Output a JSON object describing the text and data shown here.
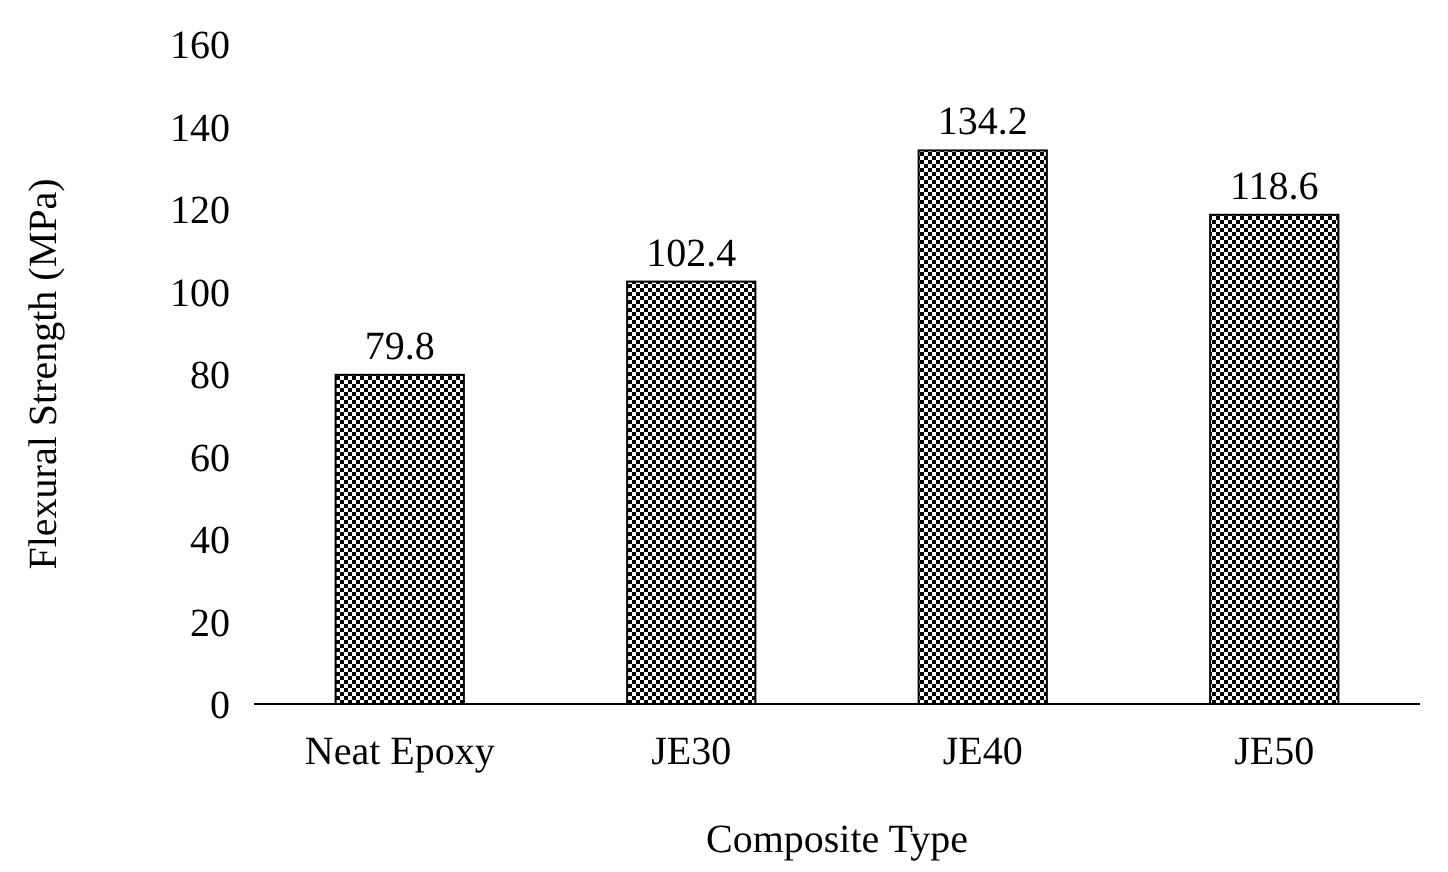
{
  "chart_data": {
    "type": "bar",
    "xlabel": "Composite Type",
    "ylabel": "Flexural Strength (MPa)",
    "categories": [
      "Neat Epoxy",
      "JE30",
      "JE40",
      "JE50"
    ],
    "values": [
      79.8,
      102.4,
      134.2,
      118.6
    ],
    "color": "#000000",
    "ylim": [
      0,
      160
    ],
    "yticks": [
      0,
      20,
      40,
      60,
      80,
      100,
      120,
      140,
      160
    ],
    "grid": false,
    "data_labels": true
  }
}
